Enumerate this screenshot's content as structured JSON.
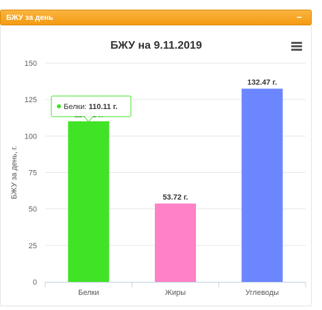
{
  "panel": {
    "title": "БЖУ за день",
    "collapse_glyph": "−",
    "header_color": "#f7a21f"
  },
  "chart_menu": {
    "icon": "hamburger-menu-icon"
  },
  "tooltip": {
    "series_label": "Белки: ",
    "value_text": "110.11 г.",
    "marker_color": "#40e326"
  },
  "chart_data": {
    "type": "bar",
    "title": "БЖУ на 9.11.2019",
    "xlabel": "",
    "ylabel": "БЖУ за день, г.",
    "categories": [
      "Белки",
      "Жиры",
      "Углеводы"
    ],
    "values": [
      110.11,
      53.72,
      132.47
    ],
    "data_labels": [
      "110.11 г.",
      "53.72 г.",
      "132.47 г."
    ],
    "colors": [
      "#40e326",
      "#ff81c6",
      "#6c86ff"
    ],
    "ylim": [
      0,
      150
    ],
    "yticks": [
      0,
      25,
      50,
      75,
      100,
      125,
      150
    ],
    "grid": true,
    "legend": "none"
  }
}
